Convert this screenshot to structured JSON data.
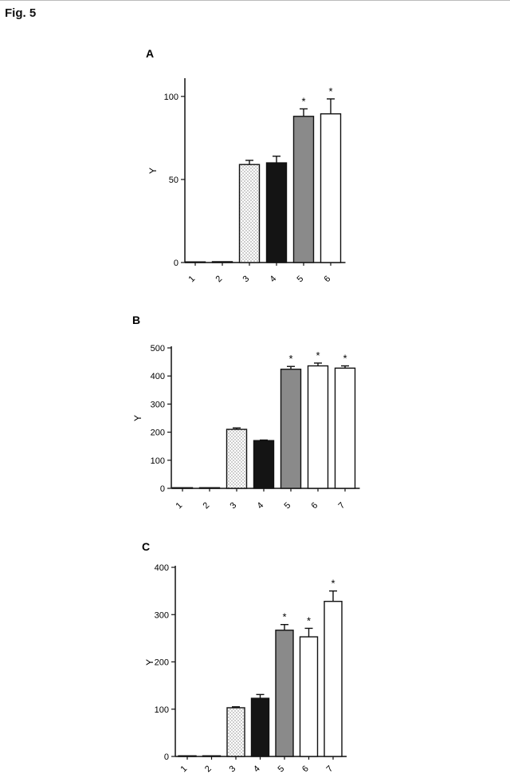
{
  "figure_title": "Fig. 5",
  "chart_data": [
    {
      "type": "bar",
      "panel_label": "A",
      "ylabel": "Y",
      "xlabel": "",
      "categories": [
        "1",
        "2",
        "3",
        "4",
        "5",
        "6"
      ],
      "values": [
        0,
        0.5,
        59,
        60,
        88,
        89.5
      ],
      "errors": [
        0,
        0.3,
        2.5,
        4,
        4.5,
        9
      ],
      "significance": [
        "",
        "",
        "",
        "",
        "*",
        "*"
      ],
      "fills": [
        "white",
        "white",
        "dotted",
        "black",
        "gray",
        "white"
      ],
      "ylim": [
        0,
        110
      ],
      "yticks": [
        0,
        50,
        100
      ],
      "grid": false
    },
    {
      "type": "bar",
      "panel_label": "B",
      "ylabel": "Y",
      "xlabel": "",
      "categories": [
        "1",
        "2",
        "3",
        "4",
        "5",
        "6",
        "7"
      ],
      "values": [
        0,
        1,
        210,
        170,
        424,
        436,
        428
      ],
      "errors": [
        0,
        0.5,
        5,
        2,
        10,
        10,
        8
      ],
      "significance": [
        "",
        "",
        "",
        "",
        "*",
        "*",
        "*"
      ],
      "fills": [
        "white",
        "white",
        "dotted",
        "black",
        "gray",
        "white",
        "white"
      ],
      "ylim": [
        0,
        500
      ],
      "yticks": [
        0,
        100,
        200,
        300,
        400,
        500
      ],
      "grid": false
    },
    {
      "type": "bar",
      "panel_label": "C",
      "ylabel": "Y",
      "xlabel": "",
      "categories": [
        "1",
        "2",
        "3",
        "4",
        "5",
        "6",
        "7"
      ],
      "values": [
        0,
        1,
        103,
        123,
        267,
        253,
        328
      ],
      "errors": [
        0,
        0.5,
        2,
        8,
        12,
        18,
        22
      ],
      "significance": [
        "",
        "",
        "",
        "",
        "*",
        "*",
        "*"
      ],
      "fills": [
        "white",
        "white",
        "dotted",
        "black",
        "gray",
        "white",
        "white"
      ],
      "ylim": [
        0,
        400
      ],
      "yticks": [
        0,
        100,
        200,
        300,
        400
      ],
      "grid": false
    }
  ]
}
